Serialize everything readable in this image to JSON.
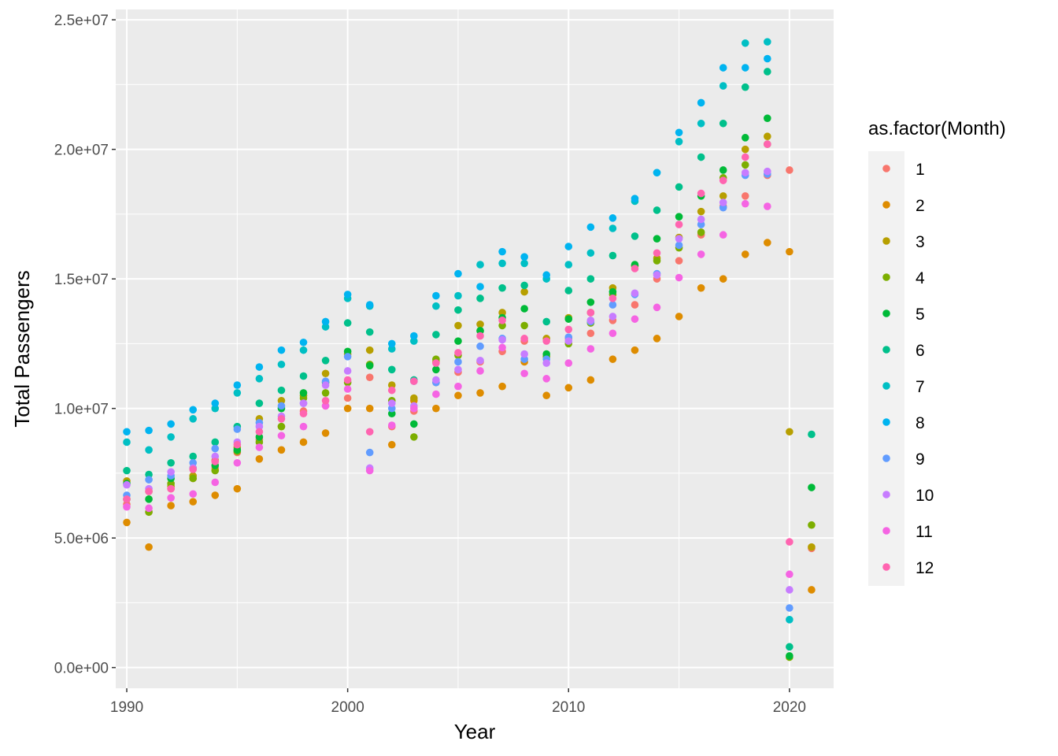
{
  "chart_data": {
    "type": "scatter",
    "title": "",
    "xlabel": "Year",
    "ylabel": "Total Passengers",
    "xlim": [
      1989.5,
      2022.0
    ],
    "ylim": [
      -800000,
      25400000
    ],
    "x_ticks": [
      1990,
      2000,
      2010,
      2020
    ],
    "x_tick_labels": [
      "1990",
      "2000",
      "2010",
      "2020"
    ],
    "y_ticks": [
      0,
      5000000,
      10000000,
      15000000,
      20000000,
      25000000
    ],
    "y_tick_labels": [
      "0.0e+00",
      "5.0e+06",
      "1.0e+07",
      "1.5e+07",
      "2.0e+07",
      "2.5e+07"
    ],
    "legend": {
      "title": "as.factor(Month)",
      "position": "right"
    },
    "years": [
      1990,
      1991,
      1992,
      1993,
      1994,
      1995,
      1996,
      1997,
      1998,
      1999,
      2000,
      2001,
      2002,
      2003,
      2004,
      2005,
      2006,
      2007,
      2008,
      2009,
      2010,
      2011,
      2012,
      2013,
      2014,
      2015,
      2016,
      2017,
      2018,
      2019,
      2020,
      2021
    ],
    "series": [
      {
        "name": "1",
        "color": "#F8766D",
        "values": [
          6300000,
          6000000,
          6900000,
          7300000,
          7700000,
          8300000,
          8800000,
          9300000,
          9900000,
          10100000,
          10400000,
          11200000,
          9300000,
          9900000,
          11000000,
          11400000,
          11800000,
          12200000,
          12600000,
          12000000,
          12700000,
          12900000,
          13400000,
          14000000,
          15000000,
          15700000,
          16700000,
          17800000,
          18200000,
          19000000,
          19200000,
          4600000
        ]
      },
      {
        "name": "2",
        "color": "#DE8C00",
        "values": [
          5600000,
          4650000,
          6250000,
          6400000,
          6650000,
          6900000,
          8050000,
          8400000,
          8700000,
          9050000,
          10000000,
          10000000,
          8600000,
          10300000,
          10000000,
          10500000,
          10600000,
          10850000,
          11800000,
          10500000,
          10800000,
          11100000,
          11900000,
          12250000,
          12700000,
          13550000,
          14650000,
          15000000,
          15950000,
          16400000,
          16050000,
          3000000
        ]
      },
      {
        "name": "3",
        "color": "#B79F00",
        "values": [
          7200000,
          6800000,
          7000000,
          7400000,
          8000000,
          8500000,
          9600000,
          10300000,
          10500000,
          11350000,
          12100000,
          12250000,
          10900000,
          10400000,
          11800000,
          13200000,
          13250000,
          13700000,
          14500000,
          12700000,
          13500000,
          13700000,
          14650000,
          15500000,
          15800000,
          16600000,
          17600000,
          18200000,
          20000000,
          20500000,
          9100000,
          4650000
        ]
      },
      {
        "name": "4",
        "color": "#7CAE00",
        "values": [
          6500000,
          6000000,
          7100000,
          7300000,
          7600000,
          8350000,
          8700000,
          9300000,
          10400000,
          10600000,
          11000000,
          11700000,
          10300000,
          8900000,
          11900000,
          12050000,
          13000000,
          13200000,
          13200000,
          12000000,
          12500000,
          13300000,
          14400000,
          15500000,
          15700000,
          16200000,
          16800000,
          18900000,
          19400000,
          20200000,
          400000,
          5500000
        ]
      },
      {
        "name": "5",
        "color": "#00BA38",
        "values": [
          7100000,
          6500000,
          7300000,
          7700000,
          7800000,
          8400000,
          8900000,
          10000000,
          10600000,
          11000000,
          12200000,
          11650000,
          9800000,
          9400000,
          11500000,
          12600000,
          13000000,
          13500000,
          13850000,
          12100000,
          13450000,
          14100000,
          14500000,
          15550000,
          16550000,
          17400000,
          18200000,
          19200000,
          20450000,
          21200000,
          450000,
          6950000
        ]
      },
      {
        "name": "6",
        "color": "#00C08B",
        "values": [
          7600000,
          7450000,
          7900000,
          8150000,
          8700000,
          9300000,
          10200000,
          10700000,
          11250000,
          11850000,
          13300000,
          12950000,
          11500000,
          11100000,
          12850000,
          13800000,
          14250000,
          14650000,
          14750000,
          13350000,
          14550000,
          15000000,
          15900000,
          16650000,
          17650000,
          18550000,
          19700000,
          21000000,
          22400000,
          23000000,
          800000,
          9000000
        ]
      },
      {
        "name": "7",
        "color": "#00BFC4",
        "values": [
          8700000,
          8400000,
          8900000,
          9600000,
          10000000,
          10600000,
          11150000,
          11700000,
          12250000,
          13150000,
          14250000,
          13950000,
          12300000,
          12600000,
          13950000,
          14350000,
          15550000,
          15600000,
          15600000,
          15000000,
          15550000,
          16000000,
          16950000,
          18000000,
          19100000,
          20300000,
          21000000,
          22450000,
          24100000,
          24150000,
          1850000
        ]
      },
      {
        "name": "8",
        "color": "#00B4F0",
        "values": [
          9100000,
          9150000,
          9400000,
          9950000,
          10200000,
          10900000,
          11600000,
          12250000,
          12550000,
          13350000,
          14400000,
          14000000,
          12500000,
          12800000,
          14350000,
          15200000,
          14700000,
          16050000,
          15850000,
          15150000,
          16250000,
          17000000,
          17350000,
          18100000,
          19100000,
          20650000,
          21800000,
          23150000,
          23150000,
          23500000
        ]
      },
      {
        "name": "9",
        "color": "#619CFF",
        "values": [
          6650000,
          7250000,
          7400000,
          7900000,
          8450000,
          9200000,
          9450000,
          10100000,
          10200000,
          11050000,
          12000000,
          8300000,
          10000000,
          11050000,
          11000000,
          11800000,
          12400000,
          12700000,
          11900000,
          11900000,
          12750000,
          13350000,
          14000000,
          14400000,
          15200000,
          16300000,
          17100000,
          17750000,
          19000000,
          19050000,
          2300000
        ]
      },
      {
        "name": "10",
        "color": "#C77CFF",
        "values": [
          7050000,
          6900000,
          7550000,
          7700000,
          8150000,
          8700000,
          9300000,
          9700000,
          10200000,
          10900000,
          11450000,
          7700000,
          10200000,
          10100000,
          11100000,
          11500000,
          11850000,
          12650000,
          12100000,
          11750000,
          12600000,
          13400000,
          13550000,
          14450000,
          15150000,
          16550000,
          17300000,
          17950000,
          19100000,
          19150000,
          3000000
        ]
      },
      {
        "name": "11",
        "color": "#F564E3",
        "values": [
          6200000,
          6150000,
          6550000,
          6700000,
          7150000,
          7900000,
          8500000,
          8950000,
          9300000,
          10100000,
          10750000,
          7600000,
          9350000,
          10000000,
          10550000,
          10850000,
          11450000,
          12350000,
          11350000,
          11150000,
          11750000,
          12300000,
          12900000,
          13450000,
          13900000,
          15050000,
          15950000,
          16700000,
          17900000,
          17800000,
          3600000
        ]
      },
      {
        "name": "12",
        "color": "#FF64B0",
        "values": [
          6500000,
          6800000,
          6900000,
          7650000,
          7950000,
          8600000,
          9100000,
          9600000,
          9800000,
          10300000,
          11100000,
          9100000,
          10700000,
          11050000,
          11750000,
          12150000,
          12800000,
          13400000,
          12700000,
          12600000,
          13050000,
          13700000,
          14250000,
          15400000,
          16000000,
          17100000,
          18300000,
          18800000,
          19700000,
          20200000,
          4850000
        ]
      }
    ]
  }
}
